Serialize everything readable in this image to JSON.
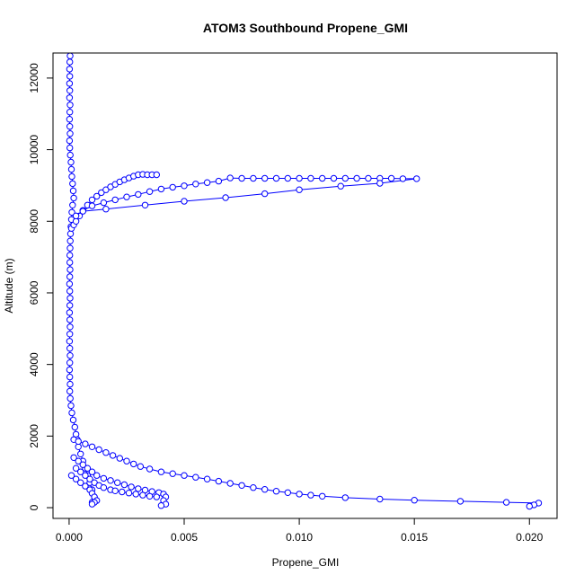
{
  "chart_data": {
    "type": "scatter",
    "title": "ATOM3 Southbound Propene_GMI",
    "xlabel": "Propene_GMI",
    "ylabel": "Altitude (m)",
    "xlim": [
      -0.0007,
      0.0212
    ],
    "ylim": [
      -300,
      12700
    ],
    "x_ticks": [
      0.0,
      0.005,
      0.01,
      0.015,
      0.02
    ],
    "x_tick_labels": [
      "0.000",
      "0.005",
      "0.010",
      "0.015",
      "0.020"
    ],
    "y_ticks": [
      0,
      2000,
      4000,
      6000,
      8000,
      10000,
      12000
    ],
    "y_tick_labels": [
      "0",
      "2000",
      "4000",
      "6000",
      "8000",
      "10000",
      "12000"
    ],
    "grid": false,
    "marker": "open-circle",
    "connect_points": true,
    "series_color": "#0000ff",
    "series": [
      {
        "values": [
          [
            4e-05,
            12620
          ],
          [
            3e-05,
            12450
          ],
          [
            2e-05,
            12250
          ],
          [
            3e-05,
            12050
          ],
          [
            2e-05,
            11850
          ],
          [
            3e-05,
            11650
          ],
          [
            2e-05,
            11450
          ],
          [
            4e-05,
            11250
          ],
          [
            3e-05,
            11050
          ],
          [
            2e-05,
            10850
          ],
          [
            3e-05,
            10650
          ],
          [
            4e-05,
            10450
          ],
          [
            2e-05,
            10250
          ],
          [
            3e-05,
            10050
          ],
          [
            5e-05,
            9850
          ],
          [
            8e-05,
            9650
          ],
          [
            0.0001,
            9450
          ],
          [
            0.00012,
            9250
          ],
          [
            0.00015,
            9050
          ],
          [
            0.00018,
            8850
          ],
          [
            0.0002,
            8650
          ],
          [
            0.00015,
            8450
          ],
          [
            0.00012,
            8250
          ],
          [
            0.0001,
            8050
          ],
          [
            8e-05,
            7850
          ],
          [
            6e-05,
            7650
          ],
          [
            5e-05,
            7450
          ],
          [
            4e-05,
            7250
          ],
          [
            3e-05,
            7050
          ],
          [
            3e-05,
            6850
          ],
          [
            4e-05,
            6650
          ],
          [
            3e-05,
            6450
          ],
          [
            2e-05,
            6250
          ],
          [
            3e-05,
            6050
          ],
          [
            4e-05,
            5850
          ],
          [
            3e-05,
            5650
          ],
          [
            2e-05,
            5450
          ],
          [
            3e-05,
            5250
          ],
          [
            4e-05,
            5050
          ],
          [
            3e-05,
            4850
          ],
          [
            2e-05,
            4650
          ],
          [
            3e-05,
            4450
          ],
          [
            4e-05,
            4250
          ],
          [
            3e-05,
            4050
          ],
          [
            2e-05,
            3850
          ],
          [
            3e-05,
            3650
          ],
          [
            4e-05,
            3450
          ],
          [
            3e-05,
            3250
          ],
          [
            5e-05,
            3050
          ],
          [
            8e-05,
            2850
          ],
          [
            0.00012,
            2650
          ],
          [
            0.00018,
            2450
          ],
          [
            0.00025,
            2250
          ],
          [
            0.0003,
            2050
          ],
          [
            0.00035,
            1900
          ],
          [
            0.0004,
            1700
          ],
          [
            0.0005,
            1500
          ],
          [
            0.0006,
            1300
          ],
          [
            0.0007,
            1100
          ],
          [
            0.0008,
            900
          ],
          [
            0.0009,
            700
          ],
          [
            0.001,
            500
          ],
          [
            0.0011,
            300
          ],
          [
            0.001,
            150
          ]
        ]
      },
      {
        "values": [
          [
            0.0001,
            7800
          ],
          [
            0.0002,
            7900
          ],
          [
            0.0003,
            8000
          ],
          [
            0.00045,
            8150
          ],
          [
            0.0006,
            8300
          ],
          [
            0.0008,
            8450
          ],
          [
            0.001,
            8600
          ],
          [
            0.0012,
            8700
          ],
          [
            0.0014,
            8800
          ],
          [
            0.0016,
            8880
          ],
          [
            0.0018,
            8960
          ],
          [
            0.002,
            9030
          ],
          [
            0.0022,
            9100
          ],
          [
            0.0024,
            9160
          ],
          [
            0.0026,
            9210
          ],
          [
            0.0028,
            9260
          ],
          [
            0.003,
            9300
          ],
          [
            0.0032,
            9310
          ],
          [
            0.0034,
            9300
          ],
          [
            0.0036,
            9300
          ],
          [
            0.0038,
            9300
          ]
        ]
      },
      {
        "values": [
          [
            0.0003,
            8150
          ],
          [
            0.0006,
            8300
          ],
          [
            0.001,
            8430
          ],
          [
            0.0015,
            8520
          ],
          [
            0.002,
            8600
          ],
          [
            0.0025,
            8680
          ],
          [
            0.003,
            8750
          ],
          [
            0.0035,
            8830
          ],
          [
            0.004,
            8900
          ],
          [
            0.0045,
            8950
          ],
          [
            0.005,
            8990
          ],
          [
            0.0055,
            9040
          ],
          [
            0.006,
            9080
          ],
          [
            0.0065,
            9120
          ],
          [
            0.007,
            9210
          ],
          [
            0.0075,
            9200
          ],
          [
            0.008,
            9200
          ],
          [
            0.0085,
            9200
          ],
          [
            0.009,
            9200
          ],
          [
            0.0095,
            9200
          ],
          [
            0.01,
            9200
          ],
          [
            0.0105,
            9200
          ],
          [
            0.011,
            9200
          ],
          [
            0.0115,
            9200
          ],
          [
            0.012,
            9200
          ],
          [
            0.0125,
            9200
          ],
          [
            0.013,
            9200
          ],
          [
            0.0135,
            9200
          ],
          [
            0.014,
            9200
          ],
          [
            0.0145,
            9190
          ],
          [
            0.0151,
            9190
          ],
          [
            0.0135,
            9060
          ],
          [
            0.0118,
            8980
          ],
          [
            0.01,
            8880
          ],
          [
            0.0085,
            8770
          ],
          [
            0.0068,
            8660
          ],
          [
            0.005,
            8560
          ],
          [
            0.0033,
            8450
          ],
          [
            0.0016,
            8340
          ],
          [
            0.0006,
            8280
          ]
        ]
      },
      {
        "values": [
          [
            0.0002,
            1900
          ],
          [
            0.0004,
            1850
          ],
          [
            0.0007,
            1780
          ],
          [
            0.001,
            1700
          ],
          [
            0.0013,
            1620
          ],
          [
            0.0016,
            1540
          ],
          [
            0.0019,
            1460
          ],
          [
            0.0022,
            1380
          ],
          [
            0.0025,
            1300
          ],
          [
            0.0028,
            1220
          ],
          [
            0.0031,
            1150
          ],
          [
            0.0035,
            1080
          ],
          [
            0.004,
            1000
          ],
          [
            0.0045,
            950
          ],
          [
            0.005,
            900
          ],
          [
            0.0055,
            850
          ],
          [
            0.006,
            800
          ],
          [
            0.0065,
            740
          ],
          [
            0.007,
            680
          ],
          [
            0.0075,
            620
          ],
          [
            0.008,
            560
          ],
          [
            0.0085,
            510
          ],
          [
            0.009,
            460
          ],
          [
            0.0095,
            420
          ],
          [
            0.01,
            380
          ],
          [
            0.0105,
            350
          ],
          [
            0.011,
            320
          ],
          [
            0.012,
            280
          ],
          [
            0.0135,
            240
          ],
          [
            0.015,
            210
          ],
          [
            0.017,
            180
          ],
          [
            0.019,
            150
          ],
          [
            0.0204,
            130
          ],
          [
            0.0202,
            80
          ],
          [
            0.02,
            40
          ]
        ]
      },
      {
        "values": [
          [
            0.0002,
            1400
          ],
          [
            0.0004,
            1300
          ],
          [
            0.0006,
            1200
          ],
          [
            0.0008,
            1100
          ],
          [
            0.001,
            1000
          ],
          [
            0.0012,
            900
          ],
          [
            0.0015,
            820
          ],
          [
            0.0018,
            760
          ],
          [
            0.0021,
            700
          ],
          [
            0.0024,
            640
          ],
          [
            0.0027,
            580
          ],
          [
            0.003,
            530
          ],
          [
            0.0033,
            490
          ],
          [
            0.0036,
            450
          ],
          [
            0.0039,
            420
          ],
          [
            0.0041,
            380
          ],
          [
            0.0042,
            300
          ],
          [
            0.0041,
            200
          ],
          [
            0.0042,
            100
          ],
          [
            0.004,
            60
          ]
        ]
      },
      {
        "values": [
          [
            0.0003,
            1100
          ],
          [
            0.0005,
            1000
          ],
          [
            0.0007,
            900
          ],
          [
            0.0009,
            800
          ],
          [
            0.0011,
            700
          ],
          [
            0.0013,
            620
          ],
          [
            0.0015,
            560
          ],
          [
            0.0018,
            500
          ],
          [
            0.002,
            470
          ],
          [
            0.0023,
            440
          ],
          [
            0.0026,
            410
          ],
          [
            0.0029,
            380
          ],
          [
            0.0032,
            350
          ],
          [
            0.0035,
            320
          ],
          [
            0.0038,
            300
          ]
        ]
      },
      {
        "values": [
          [
            0.0001,
            900
          ],
          [
            0.0003,
            800
          ],
          [
            0.0005,
            700
          ],
          [
            0.0007,
            600
          ],
          [
            0.0009,
            500
          ],
          [
            0.001,
            400
          ],
          [
            0.0011,
            300
          ],
          [
            0.0012,
            200
          ],
          [
            0.0011,
            150
          ],
          [
            0.001,
            100
          ]
        ]
      }
    ]
  }
}
